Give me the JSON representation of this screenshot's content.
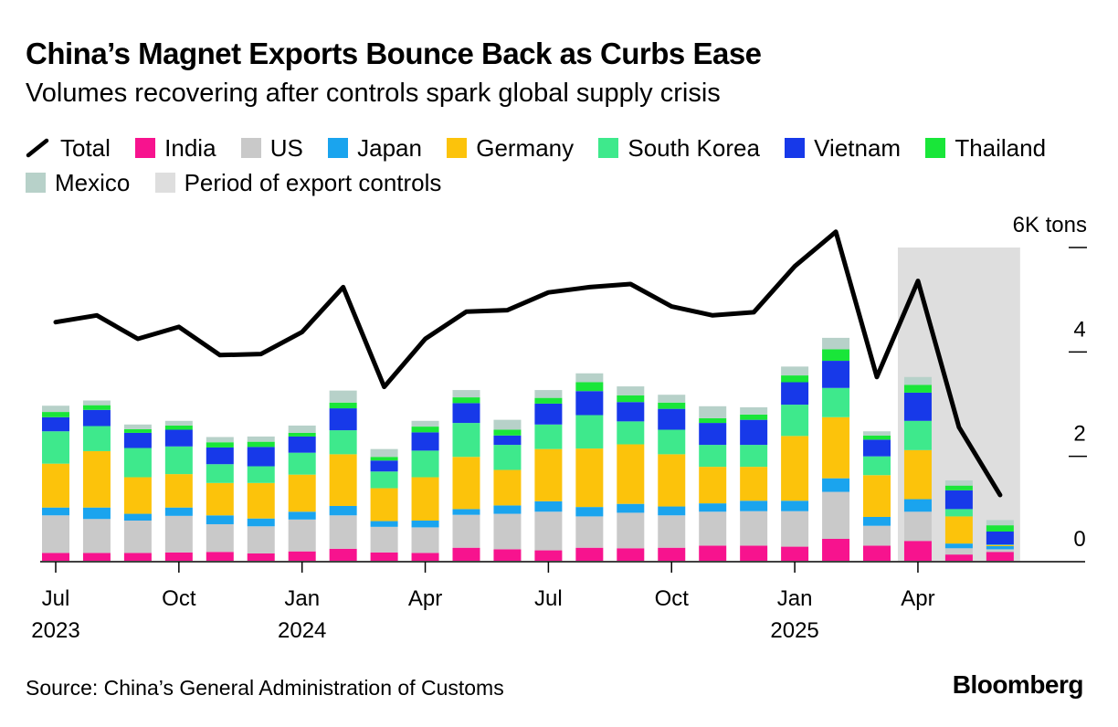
{
  "title": "China’s Magnet Exports Bounce Back as Curbs Ease",
  "subtitle": "Volumes recovering after controls spark global supply crisis",
  "source": "Source: China’s General Administration of Customs",
  "brand": "Bloomberg",
  "legend": {
    "total": "Total",
    "series_labels": [
      "India",
      "US",
      "Japan",
      "Germany",
      "South Korea",
      "Vietnam",
      "Thailand",
      "Mexico"
    ],
    "period": "Period of export controls"
  },
  "colors": {
    "India": "#f7138e",
    "US": "#c9c9c9",
    "Japan": "#1aa4ee",
    "Germany": "#fcc30b",
    "South Korea": "#3ee98c",
    "Vietnam": "#1739e9",
    "Thailand": "#19e639",
    "Mexico": "#b7d1c9",
    "Total": "#000000",
    "period": "#dedede"
  },
  "chart_data": {
    "type": "bar",
    "stacked": true,
    "x": [
      "2023-07",
      "2023-08",
      "2023-09",
      "2023-10",
      "2023-11",
      "2023-12",
      "2024-01",
      "2024-02",
      "2024-03",
      "2024-04",
      "2024-05",
      "2024-06",
      "2024-07",
      "2024-08",
      "2024-09",
      "2024-10",
      "2024-11",
      "2024-12",
      "2025-01",
      "2025-02",
      "2025-03",
      "2025-04",
      "2025-05",
      "2025-06"
    ],
    "x_tick_labels": [
      {
        "x": "2023-07",
        "label": "Jul",
        "year": "2023"
      },
      {
        "x": "2023-10",
        "label": "Oct",
        "year": ""
      },
      {
        "x": "2024-01",
        "label": "Jan",
        "year": "2024"
      },
      {
        "x": "2024-04",
        "label": "Apr",
        "year": ""
      },
      {
        "x": "2024-07",
        "label": "Jul",
        "year": ""
      },
      {
        "x": "2024-10",
        "label": "Oct",
        "year": ""
      },
      {
        "x": "2025-01",
        "label": "Jan",
        "year": "2025"
      },
      {
        "x": "2025-04",
        "label": "Apr",
        "year": ""
      }
    ],
    "y_ticks": [
      {
        "value": 0,
        "label": "0"
      },
      {
        "value": 2000,
        "label": "2"
      },
      {
        "value": 4000,
        "label": "4"
      },
      {
        "value": 6000,
        "label": "6K tons"
      }
    ],
    "ylim": [
      0,
      6000
    ],
    "grid": false,
    "shaded_period": {
      "start": "2025-04",
      "end": "2025-06"
    },
    "series": [
      {
        "name": "India",
        "values": [
          150,
          150,
          150,
          160,
          170,
          140,
          180,
          230,
          160,
          150,
          250,
          220,
          200,
          250,
          240,
          250,
          290,
          290,
          270,
          420,
          290,
          380,
          120,
          170
        ]
      },
      {
        "name": "US",
        "values": [
          720,
          650,
          620,
          700,
          530,
          520,
          610,
          640,
          490,
          490,
          630,
          680,
          740,
          600,
          680,
          620,
          650,
          660,
          680,
          900,
          380,
          560,
          120,
          50
        ]
      },
      {
        "name": "Japan",
        "values": [
          150,
          220,
          130,
          160,
          170,
          150,
          150,
          180,
          110,
          130,
          110,
          160,
          200,
          180,
          170,
          170,
          160,
          200,
          200,
          260,
          170,
          240,
          90,
          60
        ]
      },
      {
        "name": "Germany",
        "values": [
          840,
          1080,
          700,
          640,
          620,
          680,
          710,
          990,
          630,
          830,
          1000,
          680,
          1000,
          1120,
          1140,
          1000,
          700,
          650,
          1240,
          1170,
          800,
          940,
          520,
          20
        ]
      },
      {
        "name": "South Korea",
        "values": [
          620,
          480,
          560,
          530,
          360,
          320,
          420,
          460,
          320,
          510,
          650,
          480,
          470,
          640,
          440,
          470,
          420,
          420,
          600,
          560,
          360,
          560,
          140,
          10
        ]
      },
      {
        "name": "Vietnam",
        "values": [
          270,
          310,
          290,
          320,
          320,
          370,
          310,
          420,
          210,
          350,
          380,
          180,
          400,
          460,
          370,
          400,
          420,
          480,
          430,
          520,
          320,
          540,
          360,
          250
        ]
      },
      {
        "name": "Thailand",
        "values": [
          100,
          90,
          70,
          80,
          100,
          100,
          70,
          110,
          70,
          110,
          110,
          110,
          110,
          170,
          130,
          120,
          90,
          100,
          130,
          220,
          80,
          150,
          90,
          120
        ]
      },
      {
        "name": "Mexico",
        "values": [
          120,
          90,
          90,
          90,
          100,
          100,
          140,
          230,
          150,
          110,
          140,
          190,
          150,
          170,
          170,
          150,
          230,
          140,
          170,
          220,
          80,
          150,
          100,
          100
        ]
      }
    ],
    "total": [
      4570,
      4700,
      4250,
      4480,
      3940,
      3960,
      4380,
      5240,
      3330,
      4250,
      4770,
      4800,
      5140,
      5240,
      5300,
      4870,
      4700,
      4760,
      5640,
      6300,
      3520,
      5360,
      2560,
      1260
    ]
  }
}
